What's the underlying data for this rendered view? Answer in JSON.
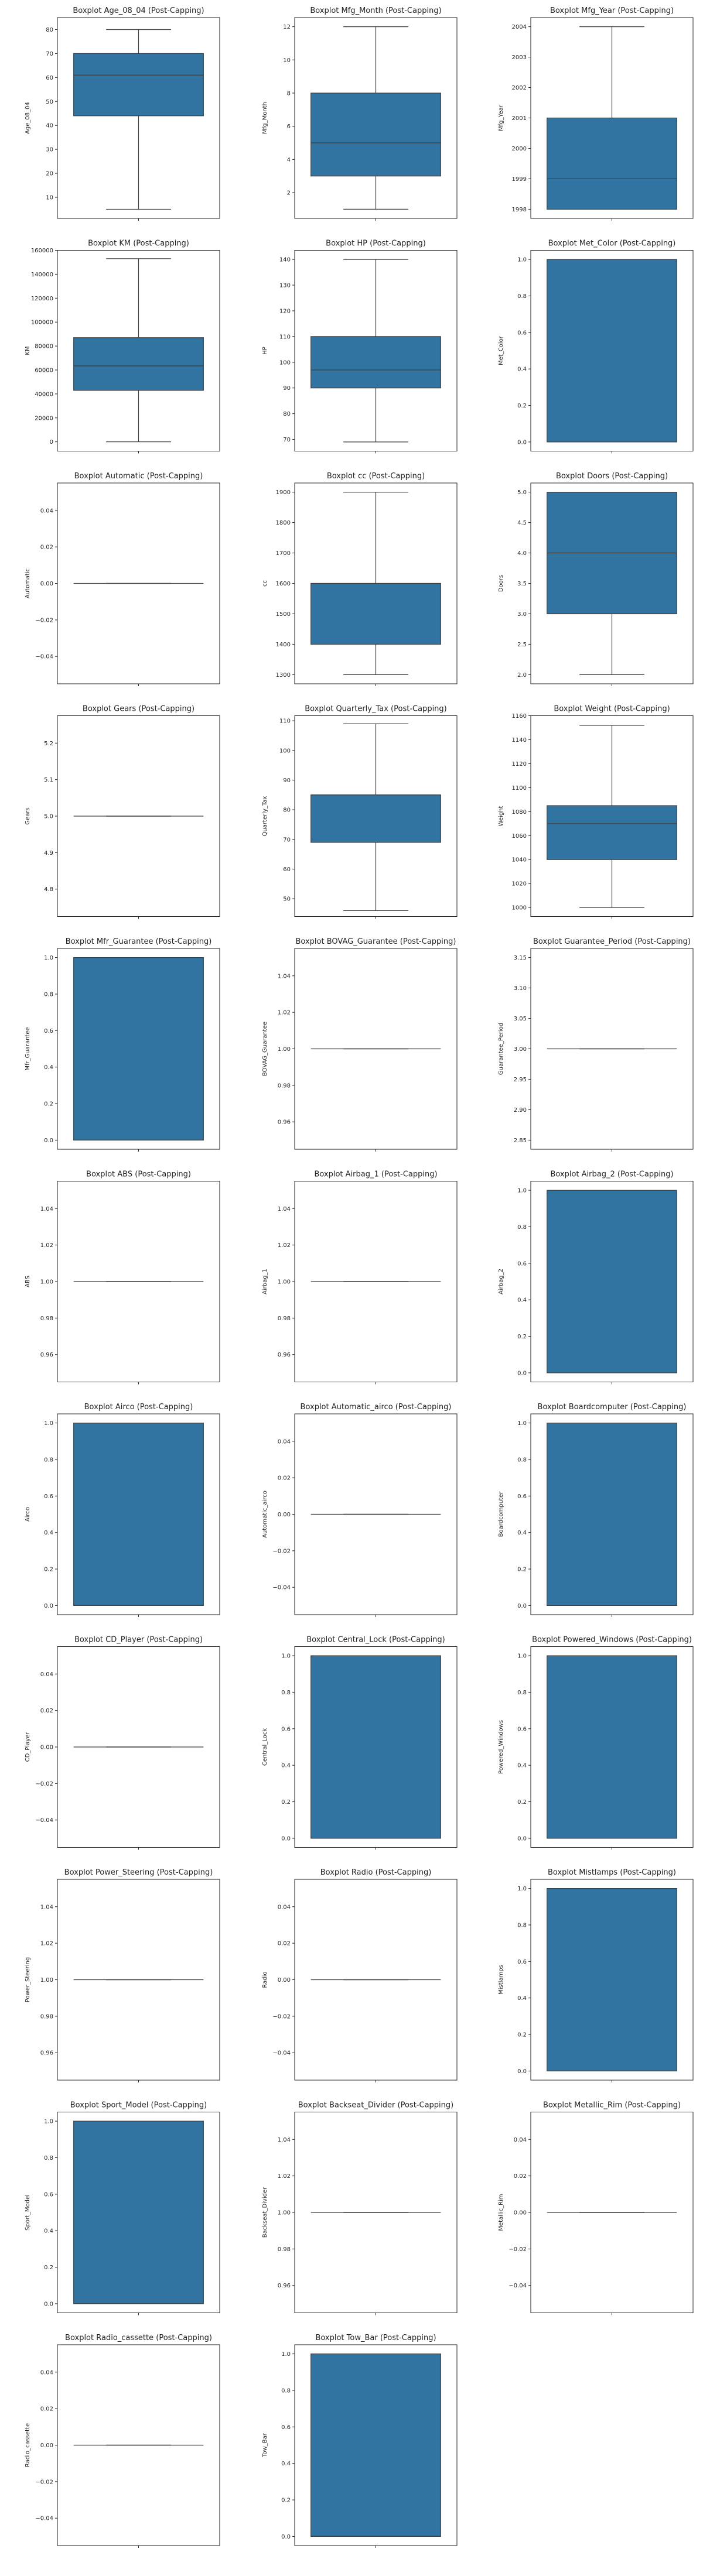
{
  "chart_data": [
    {
      "type": "boxplot",
      "title": "Boxplot Age_08_04 (Post-Capping)",
      "ylabel": "Age_08_04",
      "ylim": [
        1.2,
        85.0
      ],
      "yticks": [
        10,
        20,
        30,
        40,
        50,
        60,
        70,
        80
      ],
      "stats": {
        "whislo": 5,
        "q1": 44,
        "med": 61,
        "q3": 70,
        "whishi": 80
      }
    },
    {
      "type": "boxplot",
      "title": "Boxplot Mfg_Month (Post-Capping)",
      "ylabel": "Mfg_Month",
      "ylim": [
        0.45,
        12.55
      ],
      "yticks": [
        2,
        4,
        6,
        8,
        10,
        12
      ],
      "stats": {
        "whislo": 1,
        "q1": 3,
        "med": 5,
        "q3": 8,
        "whishi": 12
      }
    },
    {
      "type": "boxplot",
      "title": "Boxplot Mfg_Year (Post-Capping)",
      "ylabel": "Mfg_Year",
      "ylim": [
        1997.7,
        2004.3
      ],
      "yticks": [
        1998,
        1999,
        2000,
        2001,
        2002,
        2003,
        2004
      ],
      "stats": {
        "whislo": 1998,
        "q1": 1998,
        "med": 1999,
        "q3": 2001,
        "whishi": 2004
      }
    },
    {
      "type": "boxplot",
      "title": "Boxplot KM (Post-Capping)",
      "ylabel": "KM",
      "ylim": [
        -7750,
        160000
      ],
      "yticks": [
        0,
        20000,
        40000,
        60000,
        80000,
        100000,
        120000,
        140000,
        160000
      ],
      "stats": {
        "whislo": 1,
        "q1": 43000,
        "med": 63400,
        "q3": 87000,
        "whishi": 153000
      }
    },
    {
      "type": "boxplot",
      "title": "Boxplot HP (Post-Capping)",
      "ylabel": "HP",
      "ylim": [
        65.45,
        143.55
      ],
      "yticks": [
        70,
        80,
        90,
        100,
        110,
        120,
        130,
        140
      ],
      "stats": {
        "whislo": 69,
        "q1": 90,
        "med": 97,
        "q3": 110,
        "whishi": 140
      }
    },
    {
      "type": "boxplot",
      "title": "Boxplot Met_Color (Post-Capping)",
      "ylabel": "Met_Color",
      "ylim": [
        -0.05,
        1.05
      ],
      "yticks": [
        0.0,
        0.2,
        0.4,
        0.6,
        0.8,
        1.0
      ],
      "stats": {
        "whislo": 0,
        "q1": 0,
        "med": 1,
        "q3": 1,
        "whishi": 1
      }
    },
    {
      "type": "boxplot",
      "title": "Boxplot Automatic (Post-Capping)",
      "ylabel": "Automatic",
      "ylim": [
        -0.055,
        0.055
      ],
      "yticks": [
        -0.04,
        -0.02,
        0.0,
        0.02,
        0.04
      ],
      "stats": {
        "whislo": 0,
        "q1": 0,
        "med": 0,
        "q3": 0,
        "whishi": 0
      }
    },
    {
      "type": "boxplot",
      "title": "Boxplot cc (Post-Capping)",
      "ylabel": "cc",
      "ylim": [
        1270,
        1930
      ],
      "yticks": [
        1300,
        1400,
        1500,
        1600,
        1700,
        1800,
        1900
      ],
      "stats": {
        "whislo": 1300,
        "q1": 1400,
        "med": 1600,
        "q3": 1600,
        "whishi": 1900
      }
    },
    {
      "type": "boxplot",
      "title": "Boxplot Doors (Post-Capping)",
      "ylabel": "Doors",
      "ylim": [
        1.85,
        5.15
      ],
      "yticks": [
        2.0,
        2.5,
        3.0,
        3.5,
        4.0,
        4.5,
        5.0
      ],
      "stats": {
        "whislo": 2,
        "q1": 3,
        "med": 4,
        "q3": 5,
        "whishi": 5
      }
    },
    {
      "type": "boxplot",
      "title": "Boxplot Gears (Post-Capping)",
      "ylabel": "Gears",
      "ylim": [
        4.725,
        5.275
      ],
      "yticks": [
        4.8,
        4.9,
        5.0,
        5.1,
        5.2
      ],
      "stats": {
        "whislo": 5,
        "q1": 5,
        "med": 5,
        "q3": 5,
        "whishi": 5
      }
    },
    {
      "type": "boxplot",
      "title": "Boxplot Quarterly_Tax (Post-Capping)",
      "ylabel": "Quarterly_Tax",
      "ylim": [
        44.0,
        111.7
      ],
      "yticks": [
        50,
        60,
        70,
        80,
        90,
        100,
        110
      ],
      "stats": {
        "whislo": 46,
        "q1": 69,
        "med": 85,
        "q3": 85,
        "whishi": 109
      }
    },
    {
      "type": "boxplot",
      "title": "Boxplot Weight (Post-Capping)",
      "ylabel": "Weight",
      "ylim": [
        992.5,
        1160
      ],
      "yticks": [
        1000,
        1020,
        1040,
        1060,
        1080,
        1100,
        1120,
        1140,
        1160
      ],
      "stats": {
        "whislo": 1000,
        "q1": 1040,
        "med": 1070,
        "q3": 1085,
        "whishi": 1152
      }
    },
    {
      "type": "boxplot",
      "title": "Boxplot Mfr_Guarantee (Post-Capping)",
      "ylabel": "Mfr_Guarantee",
      "ylim": [
        -0.05,
        1.05
      ],
      "yticks": [
        0.0,
        0.2,
        0.4,
        0.6,
        0.8,
        1.0
      ],
      "stats": {
        "whislo": 0,
        "q1": 0,
        "med": 0,
        "q3": 1,
        "whishi": 1
      }
    },
    {
      "type": "boxplot",
      "title": "Boxplot BOVAG_Guarantee (Post-Capping)",
      "ylabel": "BOVAG_Guarantee",
      "ylim": [
        0.945,
        1.055
      ],
      "yticks": [
        0.96,
        0.98,
        1.0,
        1.02,
        1.04
      ],
      "stats": {
        "whislo": 1,
        "q1": 1,
        "med": 1,
        "q3": 1,
        "whishi": 1
      }
    },
    {
      "type": "boxplot",
      "title": "Boxplot Guarantee_Period (Post-Capping)",
      "ylabel": "Guarantee_Period",
      "ylim": [
        2.835,
        3.165
      ],
      "yticks": [
        2.85,
        2.9,
        2.95,
        3.0,
        3.05,
        3.1,
        3.15
      ],
      "stats": {
        "whislo": 3,
        "q1": 3,
        "med": 3,
        "q3": 3,
        "whishi": 3
      }
    },
    {
      "type": "boxplot",
      "title": "Boxplot ABS (Post-Capping)",
      "ylabel": "ABS",
      "ylim": [
        0.945,
        1.055
      ],
      "yticks": [
        0.96,
        0.98,
        1.0,
        1.02,
        1.04
      ],
      "stats": {
        "whislo": 1,
        "q1": 1,
        "med": 1,
        "q3": 1,
        "whishi": 1
      }
    },
    {
      "type": "boxplot",
      "title": "Boxplot Airbag_1 (Post-Capping)",
      "ylabel": "Airbag_1",
      "ylim": [
        0.945,
        1.055
      ],
      "yticks": [
        0.96,
        0.98,
        1.0,
        1.02,
        1.04
      ],
      "stats": {
        "whislo": 1,
        "q1": 1,
        "med": 1,
        "q3": 1,
        "whishi": 1
      }
    },
    {
      "type": "boxplot",
      "title": "Boxplot Airbag_2 (Post-Capping)",
      "ylabel": "Airbag_2",
      "ylim": [
        -0.05,
        1.05
      ],
      "yticks": [
        0.0,
        0.2,
        0.4,
        0.6,
        0.8,
        1.0
      ],
      "stats": {
        "whislo": 0,
        "q1": 0,
        "med": 1,
        "q3": 1,
        "whishi": 1
      }
    },
    {
      "type": "boxplot",
      "title": "Boxplot Airco (Post-Capping)",
      "ylabel": "Airco",
      "ylim": [
        -0.05,
        1.05
      ],
      "yticks": [
        0.0,
        0.2,
        0.4,
        0.6,
        0.8,
        1.0
      ],
      "stats": {
        "whislo": 0,
        "q1": 0,
        "med": 1,
        "q3": 1,
        "whishi": 1
      }
    },
    {
      "type": "boxplot",
      "title": "Boxplot Automatic_airco (Post-Capping)",
      "ylabel": "Automatic_airco",
      "ylim": [
        -0.055,
        0.055
      ],
      "yticks": [
        -0.04,
        -0.02,
        0.0,
        0.02,
        0.04
      ],
      "stats": {
        "whislo": 0,
        "q1": 0,
        "med": 0,
        "q3": 0,
        "whishi": 0
      }
    },
    {
      "type": "boxplot",
      "title": "Boxplot Boardcomputer (Post-Capping)",
      "ylabel": "Boardcomputer",
      "ylim": [
        -0.05,
        1.05
      ],
      "yticks": [
        0.0,
        0.2,
        0.4,
        0.6,
        0.8,
        1.0
      ],
      "stats": {
        "whislo": 0,
        "q1": 0,
        "med": 0,
        "q3": 1,
        "whishi": 1
      }
    },
    {
      "type": "boxplot",
      "title": "Boxplot CD_Player (Post-Capping)",
      "ylabel": "CD_Player",
      "ylim": [
        -0.055,
        0.055
      ],
      "yticks": [
        -0.04,
        -0.02,
        0.0,
        0.02,
        0.04
      ],
      "stats": {
        "whislo": 0,
        "q1": 0,
        "med": 0,
        "q3": 0,
        "whishi": 0
      }
    },
    {
      "type": "boxplot",
      "title": "Boxplot Central_Lock (Post-Capping)",
      "ylabel": "Central_Lock",
      "ylim": [
        -0.05,
        1.05
      ],
      "yticks": [
        0.0,
        0.2,
        0.4,
        0.6,
        0.8,
        1.0
      ],
      "stats": {
        "whislo": 0,
        "q1": 0,
        "med": 1,
        "q3": 1,
        "whishi": 1
      }
    },
    {
      "type": "boxplot",
      "title": "Boxplot Powered_Windows (Post-Capping)",
      "ylabel": "Powered_Windows",
      "ylim": [
        -0.05,
        1.05
      ],
      "yticks": [
        0.0,
        0.2,
        0.4,
        0.6,
        0.8,
        1.0
      ],
      "stats": {
        "whislo": 0,
        "q1": 0,
        "med": 1,
        "q3": 1,
        "whishi": 1
      }
    },
    {
      "type": "boxplot",
      "title": "Boxplot Power_Steering (Post-Capping)",
      "ylabel": "Power_Steering",
      "ylim": [
        0.945,
        1.055
      ],
      "yticks": [
        0.96,
        0.98,
        1.0,
        1.02,
        1.04
      ],
      "stats": {
        "whislo": 1,
        "q1": 1,
        "med": 1,
        "q3": 1,
        "whishi": 1
      }
    },
    {
      "type": "boxplot",
      "title": "Boxplot Radio (Post-Capping)",
      "ylabel": "Radio",
      "ylim": [
        -0.055,
        0.055
      ],
      "yticks": [
        -0.04,
        -0.02,
        0.0,
        0.02,
        0.04
      ],
      "stats": {
        "whislo": 0,
        "q1": 0,
        "med": 0,
        "q3": 0,
        "whishi": 0
      }
    },
    {
      "type": "boxplot",
      "title": "Boxplot Mistlamps (Post-Capping)",
      "ylabel": "Mistlamps",
      "ylim": [
        -0.05,
        1.05
      ],
      "yticks": [
        0.0,
        0.2,
        0.4,
        0.6,
        0.8,
        1.0
      ],
      "stats": {
        "whislo": 0,
        "q1": 0,
        "med": 0,
        "q3": 1,
        "whishi": 1
      }
    },
    {
      "type": "boxplot",
      "title": "Boxplot Sport_Model (Post-Capping)",
      "ylabel": "Sport_Model",
      "ylim": [
        -0.05,
        1.05
      ],
      "yticks": [
        0.0,
        0.2,
        0.4,
        0.6,
        0.8,
        1.0
      ],
      "stats": {
        "whislo": 0,
        "q1": 0,
        "med": 0,
        "q3": 1,
        "whishi": 1
      }
    },
    {
      "type": "boxplot",
      "title": "Boxplot Backseat_Divider (Post-Capping)",
      "ylabel": "Backseat_Divider",
      "ylim": [
        0.945,
        1.055
      ],
      "yticks": [
        0.96,
        0.98,
        1.0,
        1.02,
        1.04
      ],
      "stats": {
        "whislo": 1,
        "q1": 1,
        "med": 1,
        "q3": 1,
        "whishi": 1
      }
    },
    {
      "type": "boxplot",
      "title": "Boxplot Metallic_Rim (Post-Capping)",
      "ylabel": "Metallic_Rim",
      "ylim": [
        -0.055,
        0.055
      ],
      "yticks": [
        -0.04,
        -0.02,
        0.0,
        0.02,
        0.04
      ],
      "stats": {
        "whislo": 0,
        "q1": 0,
        "med": 0,
        "q3": 0,
        "whishi": 0
      }
    },
    {
      "type": "boxplot",
      "title": "Boxplot Radio_cassette (Post-Capping)",
      "ylabel": "Radio_cassette",
      "ylim": [
        -0.055,
        0.055
      ],
      "yticks": [
        -0.04,
        -0.02,
        0.0,
        0.02,
        0.04
      ],
      "stats": {
        "whislo": 0,
        "q1": 0,
        "med": 0,
        "q3": 0,
        "whishi": 0
      }
    },
    {
      "type": "boxplot",
      "title": "Boxplot Tow_Bar (Post-Capping)",
      "ylabel": "Tow_Bar",
      "ylim": [
        -0.05,
        1.05
      ],
      "yticks": [
        0.0,
        0.2,
        0.4,
        0.6,
        0.8,
        1.0
      ],
      "stats": {
        "whislo": 0,
        "q1": 0,
        "med": 0,
        "q3": 1,
        "whishi": 1
      }
    }
  ],
  "style": {
    "box_fill": "#3274a1",
    "line_color": "#3d3d3d",
    "axes_color": "#222222",
    "text_color": "#222222",
    "background": "#ffffff"
  }
}
